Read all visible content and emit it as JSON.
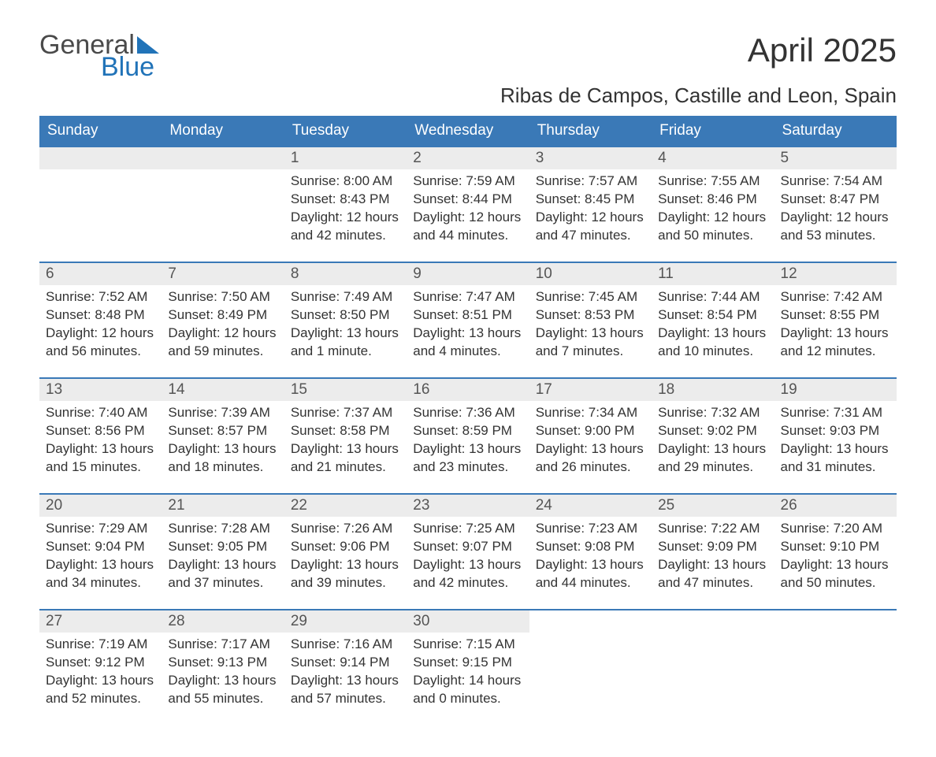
{
  "logo": {
    "word1": "General",
    "word2": "Blue"
  },
  "title": "April 2025",
  "subtitle": "Ribas de Campos, Castille and Leon, Spain",
  "colors": {
    "header_bg": "#3a79b7",
    "header_text": "#ffffff",
    "daynum_bg": "#ececec",
    "border": "#3a79b7",
    "logo_blue": "#2173b8",
    "text": "#333333"
  },
  "fontsize": {
    "title": 42,
    "subtitle": 26,
    "weekday": 19,
    "daynum": 19,
    "body": 17
  },
  "weekdays": [
    "Sunday",
    "Monday",
    "Tuesday",
    "Wednesday",
    "Thursday",
    "Friday",
    "Saturday"
  ],
  "weeks": [
    [
      null,
      null,
      {
        "n": "1",
        "sr": "8:00 AM",
        "ss": "8:43 PM",
        "dl": "12 hours and 42 minutes."
      },
      {
        "n": "2",
        "sr": "7:59 AM",
        "ss": "8:44 PM",
        "dl": "12 hours and 44 minutes."
      },
      {
        "n": "3",
        "sr": "7:57 AM",
        "ss": "8:45 PM",
        "dl": "12 hours and 47 minutes."
      },
      {
        "n": "4",
        "sr": "7:55 AM",
        "ss": "8:46 PM",
        "dl": "12 hours and 50 minutes."
      },
      {
        "n": "5",
        "sr": "7:54 AM",
        "ss": "8:47 PM",
        "dl": "12 hours and 53 minutes."
      }
    ],
    [
      {
        "n": "6",
        "sr": "7:52 AM",
        "ss": "8:48 PM",
        "dl": "12 hours and 56 minutes."
      },
      {
        "n": "7",
        "sr": "7:50 AM",
        "ss": "8:49 PM",
        "dl": "12 hours and 59 minutes."
      },
      {
        "n": "8",
        "sr": "7:49 AM",
        "ss": "8:50 PM",
        "dl": "13 hours and 1 minute."
      },
      {
        "n": "9",
        "sr": "7:47 AM",
        "ss": "8:51 PM",
        "dl": "13 hours and 4 minutes."
      },
      {
        "n": "10",
        "sr": "7:45 AM",
        "ss": "8:53 PM",
        "dl": "13 hours and 7 minutes."
      },
      {
        "n": "11",
        "sr": "7:44 AM",
        "ss": "8:54 PM",
        "dl": "13 hours and 10 minutes."
      },
      {
        "n": "12",
        "sr": "7:42 AM",
        "ss": "8:55 PM",
        "dl": "13 hours and 12 minutes."
      }
    ],
    [
      {
        "n": "13",
        "sr": "7:40 AM",
        "ss": "8:56 PM",
        "dl": "13 hours and 15 minutes."
      },
      {
        "n": "14",
        "sr": "7:39 AM",
        "ss": "8:57 PM",
        "dl": "13 hours and 18 minutes."
      },
      {
        "n": "15",
        "sr": "7:37 AM",
        "ss": "8:58 PM",
        "dl": "13 hours and 21 minutes."
      },
      {
        "n": "16",
        "sr": "7:36 AM",
        "ss": "8:59 PM",
        "dl": "13 hours and 23 minutes."
      },
      {
        "n": "17",
        "sr": "7:34 AM",
        "ss": "9:00 PM",
        "dl": "13 hours and 26 minutes."
      },
      {
        "n": "18",
        "sr": "7:32 AM",
        "ss": "9:02 PM",
        "dl": "13 hours and 29 minutes."
      },
      {
        "n": "19",
        "sr": "7:31 AM",
        "ss": "9:03 PM",
        "dl": "13 hours and 31 minutes."
      }
    ],
    [
      {
        "n": "20",
        "sr": "7:29 AM",
        "ss": "9:04 PM",
        "dl": "13 hours and 34 minutes."
      },
      {
        "n": "21",
        "sr": "7:28 AM",
        "ss": "9:05 PM",
        "dl": "13 hours and 37 minutes."
      },
      {
        "n": "22",
        "sr": "7:26 AM",
        "ss": "9:06 PM",
        "dl": "13 hours and 39 minutes."
      },
      {
        "n": "23",
        "sr": "7:25 AM",
        "ss": "9:07 PM",
        "dl": "13 hours and 42 minutes."
      },
      {
        "n": "24",
        "sr": "7:23 AM",
        "ss": "9:08 PM",
        "dl": "13 hours and 44 minutes."
      },
      {
        "n": "25",
        "sr": "7:22 AM",
        "ss": "9:09 PM",
        "dl": "13 hours and 47 minutes."
      },
      {
        "n": "26",
        "sr": "7:20 AM",
        "ss": "9:10 PM",
        "dl": "13 hours and 50 minutes."
      }
    ],
    [
      {
        "n": "27",
        "sr": "7:19 AM",
        "ss": "9:12 PM",
        "dl": "13 hours and 52 minutes."
      },
      {
        "n": "28",
        "sr": "7:17 AM",
        "ss": "9:13 PM",
        "dl": "13 hours and 55 minutes."
      },
      {
        "n": "29",
        "sr": "7:16 AM",
        "ss": "9:14 PM",
        "dl": "13 hours and 57 minutes."
      },
      {
        "n": "30",
        "sr": "7:15 AM",
        "ss": "9:15 PM",
        "dl": "14 hours and 0 minutes."
      },
      null,
      null,
      null
    ]
  ],
  "labels": {
    "sunrise": "Sunrise: ",
    "sunset": "Sunset: ",
    "daylight": "Daylight: "
  }
}
